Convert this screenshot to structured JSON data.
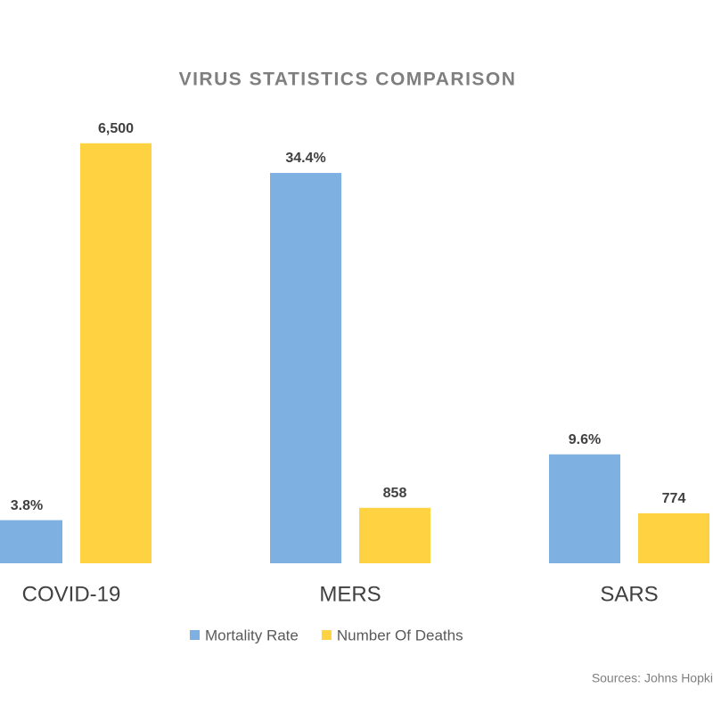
{
  "chart_data": {
    "type": "bar",
    "title": "VIRUS STATISTICS COMPARISON",
    "categories": [
      "COVID-19",
      "MERS",
      "SARS"
    ],
    "series": [
      {
        "name": "Mortality Rate",
        "color": "#7fb0e2",
        "values": [
          3.8,
          34.4,
          9.6
        ],
        "value_labels": [
          "3.8%",
          "34.4%",
          "9.6%"
        ]
      },
      {
        "name": "Number Of Deaths",
        "color": "#ffd242",
        "values": [
          6500,
          858,
          774
        ],
        "value_labels": [
          "6,500",
          "858",
          "774"
        ],
        "axis": "y2"
      }
    ],
    "ylim": [
      0,
      41
    ],
    "y2lim": [
      0,
      7200
    ],
    "grid": false,
    "legend": "bottom",
    "source": "Sources:  Johns Hopki"
  }
}
